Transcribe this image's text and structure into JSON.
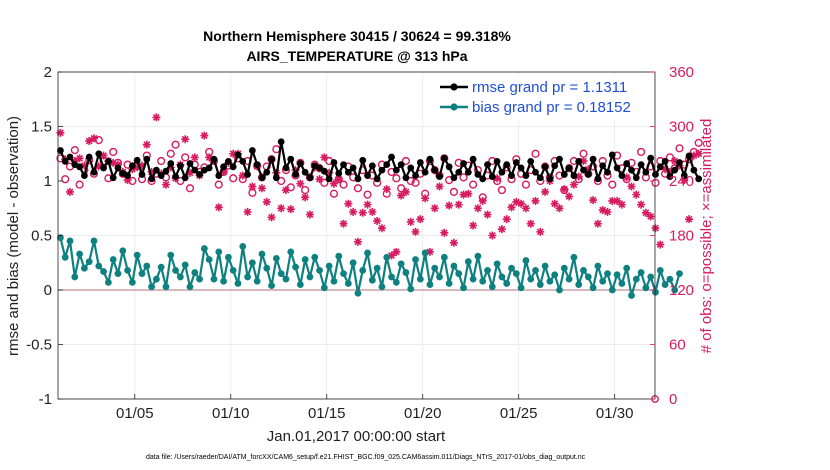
{
  "chart_data": {
    "type": "line",
    "title": [
      "Northern Hemisphere 30415 / 30624 = 99.318%",
      "AIRS_TEMPERATURE @ 313 hPa"
    ],
    "xlabel": "Jan.01,2017 00:00:00 start",
    "ylabel_left": "rmse and bias (model - observation)",
    "ylabel_right": "# of obs: o=possible; ×=assimilated",
    "xlim": [
      1,
      32.1
    ],
    "ylim_left": [
      -1,
      2
    ],
    "ylim_right": [
      0,
      360
    ],
    "x_ticks": [
      5,
      10,
      15,
      20,
      25,
      30
    ],
    "x_tick_labels": [
      "01/05",
      "01/10",
      "01/15",
      "01/20",
      "01/25",
      "01/30"
    ],
    "y_ticks_left": [
      -1,
      -0.5,
      0,
      0.5,
      1,
      1.5,
      2
    ],
    "y_tick_labels_left": [
      "-1",
      "-0.5",
      "0",
      "0.5",
      "1",
      "1.5",
      "2"
    ],
    "y_ticks_right": [
      0,
      60,
      120,
      180,
      240,
      300,
      360
    ],
    "y_tick_labels_right": [
      "0",
      "60",
      "120",
      "180",
      "240",
      "300",
      "360"
    ],
    "grid": true,
    "zero_line": 0,
    "legend_position": "top-right",
    "colors": {
      "rmse": "#000000",
      "bias": "#0f8080",
      "obs": "#d81b60",
      "zero": "#c9a0a8",
      "legend_text": "#1f4fd8"
    },
    "series": [
      {
        "name": "rmse grand pr = 1.1311",
        "axis": "left",
        "x_start": 1.125,
        "x_step": 0.25,
        "values": [
          1.28,
          1.18,
          1.22,
          1.15,
          1.13,
          1.05,
          1.22,
          1.08,
          1.25,
          1.12,
          1.18,
          1.03,
          1.12,
          1.07,
          1.05,
          1.14,
          1.19,
          1.06,
          1.2,
          1.02,
          1.1,
          1.05,
          1.09,
          1.16,
          1.04,
          1.14,
          1.03,
          1.16,
          1.1,
          1.06,
          1.1,
          1.12,
          1.2,
          1.05,
          1.13,
          1.18,
          1.13,
          1.24,
          1.18,
          1.06,
          1.28,
          1.15,
          1.03,
          1.08,
          1.2,
          1.03,
          1.36,
          1.12,
          1.2,
          1.06,
          1.16,
          1.08,
          1.03,
          1.14,
          1.12,
          1.09,
          1.02,
          1.17,
          1.07,
          1.15,
          1.08,
          1.12,
          1.02,
          1.19,
          1.05,
          1.14,
          1.02,
          1.1,
          1.15,
          1.22,
          1.1,
          1.15,
          1.03,
          1.12,
          1.05,
          1.17,
          1.08,
          1.2,
          1.1,
          1.04,
          1.21,
          1.13,
          1.03,
          1.08,
          1.16,
          1.08,
          1.2,
          1.06,
          1.02,
          1.15,
          1.04,
          1.18,
          1.08,
          1.15,
          1.05,
          1.17,
          1.12,
          1.05,
          1.18,
          1.08,
          1.03,
          1.13,
          1.02,
          1.14,
          1.2,
          1.06,
          1.12,
          1.05,
          1.18,
          1.1,
          1.06,
          1.2,
          1.02,
          1.14,
          1.08,
          1.24,
          1.12,
          1.05,
          1.16,
          1.1,
          1.03,
          1.15,
          1.08,
          1.21,
          1.06,
          1.13,
          1.18,
          1.04,
          1.1,
          1.17,
          1.05,
          1.23,
          1.1,
          1.02
        ],
        "markers": "filled-circle",
        "color": "#000000"
      },
      {
        "name": "bias grand pr = 0.18152",
        "axis": "left",
        "x_start": 1.125,
        "x_step": 0.25,
        "values": [
          0.48,
          0.3,
          0.45,
          0.12,
          0.33,
          0.2,
          0.26,
          0.45,
          0.22,
          0.17,
          0.07,
          0.28,
          0.15,
          0.36,
          0.18,
          0.07,
          0.32,
          0.15,
          0.22,
          0.03,
          0.1,
          0.21,
          0.03,
          0.32,
          0.18,
          0.12,
          0.23,
          0.03,
          0.16,
          0.1,
          0.38,
          0.28,
          0.1,
          0.35,
          0.08,
          0.3,
          0.18,
          0.06,
          0.4,
          0.12,
          0.25,
          0.08,
          0.33,
          0.2,
          0.04,
          0.29,
          0.15,
          0.1,
          0.35,
          0.21,
          0.05,
          0.28,
          0.12,
          0.3,
          0.18,
          0.02,
          0.22,
          0.08,
          0.31,
          0.15,
          0.06,
          0.25,
          -0.03,
          0.18,
          0.34,
          0.09,
          0.2,
          0.03,
          0.3,
          0.12,
          0.07,
          0.24,
          0.16,
          0.01,
          0.28,
          0.1,
          0.34,
          0.05,
          0.2,
          0.12,
          0.3,
          0.06,
          0.22,
          0.15,
          0.02,
          0.26,
          0.1,
          0.31,
          0.08,
          0.18,
          0.03,
          0.24,
          0.12,
          0.06,
          0.2,
          0.15,
          0.02,
          0.27,
          0.1,
          0.18,
          0.05,
          0.22,
          0.08,
          0.14,
          0.0,
          0.2,
          0.1,
          0.3,
          0.05,
          0.18,
          0.12,
          0.02,
          0.22,
          0.08,
          0.15,
          0.0,
          0.14,
          0.06,
          0.2,
          -0.05,
          0.1,
          0.16,
          0.02,
          0.12,
          -0.02,
          0.18,
          0.05,
          0.1,
          0.0,
          0.15
        ],
        "markers": "filled-circle",
        "color": "#0f8080"
      },
      {
        "name": "possible",
        "axis": "right",
        "x_start": 1.125,
        "x_step": 0.25,
        "values": [
          265,
          242,
          256,
          274,
          236,
          252,
          263,
          248,
          285,
          262,
          243,
          272,
          260,
          248,
          258,
          240,
          257,
          242,
          268,
          240,
          248,
          262,
          244,
          270,
          280,
          240,
          266,
          232,
          258,
          250,
          255,
          272,
          262,
          236,
          250,
          257,
          243,
          265,
          242,
          262,
          227,
          257,
          244,
          256,
          264,
          275,
          240,
          252,
          233,
          246,
          260,
          230,
          244,
          258,
          254,
          238,
          262,
          226,
          242,
          236,
          256,
          244,
          232,
          252,
          225,
          246,
          238,
          258,
          226,
          250,
          243,
          232,
          262,
          240,
          238,
          248,
          226,
          262,
          252,
          246,
          265,
          241,
          228,
          260,
          244,
          257,
          236,
          252,
          222,
          246,
          262,
          240,
          230,
          255,
          242,
          264,
          248,
          236,
          252,
          270,
          240,
          256,
          244,
          262,
          246,
          230,
          254,
          262,
          242,
          270,
          248,
          256,
          240,
          262,
          246,
          236,
          268,
          254,
          242,
          260,
          250,
          272,
          244,
          256,
          238,
          262,
          248,
          266,
          254,
          276,
          258,
          264,
          272,
          282
        ],
        "markers": "open-circle",
        "color": "#d81b60"
      },
      {
        "name": "assimilated",
        "axis": "right",
        "x_start": 1.125,
        "x_step": 0.25,
        "values": [
          293,
          264,
          228,
          262,
          265,
          257,
          284,
          287,
          256,
          268,
          262,
          260,
          258,
          250,
          241,
          253,
          255,
          257,
          280,
          250,
          310,
          248,
          236,
          255,
          243,
          258,
          286,
          249,
          266,
          246,
          290,
          266,
          262,
          211,
          250,
          260,
          270,
          270,
          246,
          206,
          234,
          256,
          232,
          217,
          200,
          249,
          210,
          230,
          209,
          252,
          237,
          222,
          203,
          255,
          242,
          266,
          249,
          237,
          242,
          193,
          215,
          206,
          173,
          205,
          214,
          206,
          196,
          188,
          231,
          158,
          162,
          224,
          228,
          195,
          184,
          198,
          221,
          162,
          210,
          234,
          183,
          213,
          172,
          214,
          225,
          226,
          191,
          210,
          218,
          203,
          180,
          243,
          187,
          198,
          211,
          217,
          215,
          210,
          193,
          218,
          184,
          228,
          240,
          215,
          210,
          231,
          223,
          236,
          245,
          262,
          253,
          219,
          193,
          208,
          206,
          218,
          218,
          214,
          244,
          234,
          225,
          214,
          205,
          201,
          188,
          170,
          253,
          250,
          262,
          257,
          241,
          198,
          268,
          270
        ],
        "markers": "star",
        "color": "#d81b60"
      }
    ]
  },
  "footer": "data file: /Users/raeder/DAI/ATM_forcXX/CAM6_setup/f.e21.FHIST_BGC.f09_025.CAM6assim.011/Diags_NTrS_2017-01/obs_diag_output.nc"
}
